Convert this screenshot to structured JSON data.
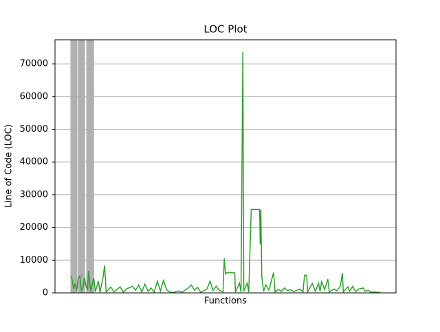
{
  "chart_data": {
    "type": "line",
    "title": "LOC Plot",
    "x_label": "Functions",
    "y_label": "Line of Code (LOC)",
    "x": [
      0,
      0.5,
      1,
      1.5,
      2,
      2.5,
      3,
      3.5,
      4,
      4.5,
      5,
      5.5,
      5.8,
      6.5,
      7.5,
      8,
      9,
      9.5,
      10.5,
      11,
      11.5,
      13,
      14,
      16,
      17,
      18,
      20,
      21,
      22,
      23,
      24,
      25,
      26,
      27,
      28,
      29,
      30,
      31,
      32,
      33,
      35,
      36,
      38,
      39,
      40,
      41,
      42,
      44,
      45,
      46,
      47,
      48,
      49.2,
      49.6,
      50,
      50.5,
      53,
      53.2,
      54.5,
      55,
      55.6,
      55.9,
      57,
      57.5,
      58.3,
      61,
      61.2,
      61.4,
      61.7,
      62.3,
      63,
      64,
      65.5,
      66,
      67,
      68,
      69,
      70,
      71,
      72,
      74,
      75,
      75.5,
      76.2,
      76.5,
      78,
      79,
      80,
      80.5,
      81,
      82,
      83,
      83.5,
      85,
      86,
      87,
      87.7,
      88,
      89.5,
      90,
      91,
      92,
      93,
      94.5,
      95,
      96,
      97,
      98,
      100
    ],
    "values": [
      5200,
      4300,
      1200,
      2800,
      600,
      4500,
      5200,
      800,
      1500,
      4600,
      2000,
      900,
      6700,
      500,
      4600,
      300,
      3600,
      200,
      4800,
      8400,
      300,
      1800,
      300,
      1800,
      200,
      1200,
      2000,
      800,
      2400,
      300,
      2700,
      500,
      1500,
      200,
      3600,
      600,
      3800,
      1000,
      300,
      100,
      600,
      200,
      1500,
      2400,
      800,
      1700,
      200,
      1100,
      3600,
      700,
      2100,
      800,
      300,
      10600,
      5800,
      6200,
      6100,
      200,
      3000,
      300,
      73700,
      500,
      3000,
      200,
      25500,
      25500,
      14800,
      25400,
      4900,
      500,
      2500,
      800,
      6200,
      300,
      1100,
      500,
      1500,
      700,
      1000,
      400,
      1200,
      300,
      5400,
      5400,
      300,
      2900,
      500,
      2900,
      500,
      3400,
      1000,
      4200,
      300,
      1200,
      600,
      2000,
      6000,
      300,
      1900,
      500,
      2000,
      400,
      1200,
      1500,
      500,
      800,
      200,
      300,
      100
    ],
    "color": "#2ca02c",
    "spans": [
      [
        0,
        2.2
      ],
      [
        2.4,
        4.7
      ],
      [
        5.1,
        7.6
      ]
    ],
    "span_color": "#b0b0b0",
    "xlim": [
      -5,
      105
    ],
    "ylim": [
      0,
      77350
    ],
    "yticks": [
      0,
      10000,
      20000,
      30000,
      40000,
      50000,
      60000,
      70000
    ],
    "grid": true
  }
}
